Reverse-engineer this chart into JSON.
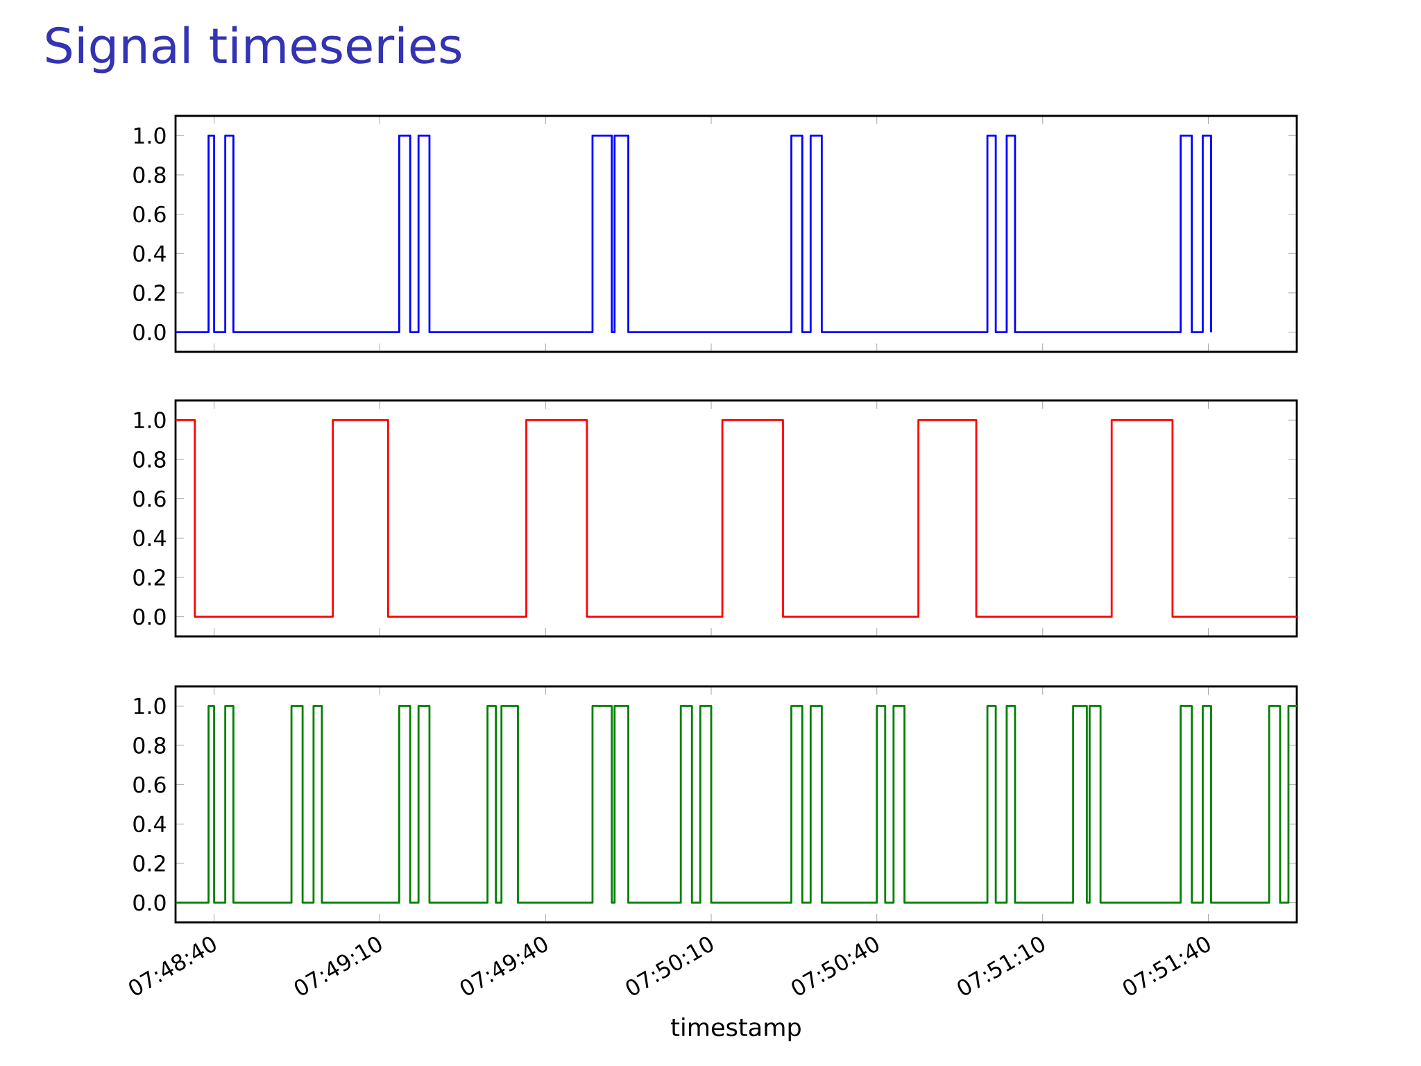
{
  "chart_data": [
    {
      "type": "step",
      "title": "Signal timeseries",
      "color": "#0000ff",
      "tick_labels": "y",
      "x": [
        7.80917,
        7.81083,
        7.81111,
        7.81167,
        7.81208,
        7.82042,
        7.82097,
        7.82139,
        7.82194,
        7.83014,
        7.83111,
        7.83125,
        7.83194,
        7.84014,
        7.84069,
        7.84111,
        7.84167,
        7.85,
        7.85042,
        7.85097,
        7.85139,
        7.85972,
        7.86028,
        7.86083,
        7.86125
      ],
      "values": [
        0,
        1,
        0,
        1,
        0,
        1,
        0,
        1,
        0,
        1,
        0,
        1,
        0,
        1,
        0,
        1,
        0,
        1,
        0,
        1,
        0,
        1,
        0,
        1,
        0
      ],
      "xlim": [
        7.80917,
        7.86556
      ],
      "xticks": [
        {
          "value": 7.81111,
          "label": null
        },
        {
          "value": 7.81944,
          "label": null
        },
        {
          "value": 7.82778,
          "label": null
        },
        {
          "value": 7.83611,
          "label": null
        },
        {
          "value": 7.84444,
          "label": null
        },
        {
          "value": 7.85278,
          "label": null
        },
        {
          "value": 7.86111,
          "label": null
        }
      ],
      "ylim": [
        -0.1,
        1.1
      ],
      "yticks": [
        {
          "value": 0,
          "label": "0.0"
        },
        {
          "value": 0.2,
          "label": "0.2"
        },
        {
          "value": 0.4,
          "label": "0.4"
        },
        {
          "value": 0.6,
          "label": "0.6"
        },
        {
          "value": 0.8,
          "label": "0.8"
        },
        {
          "value": 1,
          "label": "1.0"
        }
      ]
    },
    {
      "type": "step",
      "color": "#ff0000",
      "tick_labels": "y",
      "x": [
        7.80917,
        7.81014,
        7.81708,
        7.81986,
        7.82681,
        7.82986,
        7.83667,
        7.83972,
        7.84653,
        7.84944,
        7.85625,
        7.85931,
        7.86556
      ],
      "values": [
        1,
        0,
        1,
        0,
        1,
        0,
        1,
        0,
        1,
        0,
        1,
        0,
        0
      ],
      "xlim": [
        7.80917,
        7.86556
      ],
      "xticks": [
        {
          "value": 7.81111,
          "label": null
        },
        {
          "value": 7.81944,
          "label": null
        },
        {
          "value": 7.82778,
          "label": null
        },
        {
          "value": 7.83611,
          "label": null
        },
        {
          "value": 7.84444,
          "label": null
        },
        {
          "value": 7.85278,
          "label": null
        },
        {
          "value": 7.86111,
          "label": null
        }
      ],
      "ylim": [
        -0.1,
        1.1
      ],
      "yticks": [
        {
          "value": 0,
          "label": "0.0"
        },
        {
          "value": 0.2,
          "label": "0.2"
        },
        {
          "value": 0.4,
          "label": "0.4"
        },
        {
          "value": 0.6,
          "label": "0.6"
        },
        {
          "value": 0.8,
          "label": "0.8"
        },
        {
          "value": 1,
          "label": "1.0"
        }
      ]
    },
    {
      "type": "step",
      "color": "#008000",
      "xlabel": "timestamp",
      "x": [
        7.80917,
        7.81083,
        7.81111,
        7.81167,
        7.81208,
        7.815,
        7.81556,
        7.81611,
        7.81653,
        7.82042,
        7.82097,
        7.82139,
        7.82194,
        7.82486,
        7.82528,
        7.82556,
        7.82639,
        7.83014,
        7.83111,
        7.83125,
        7.83194,
        7.83458,
        7.83514,
        7.83556,
        7.83611,
        7.84014,
        7.84069,
        7.84111,
        7.84167,
        7.84444,
        7.84486,
        7.84528,
        7.84583,
        7.85,
        7.85042,
        7.85097,
        7.85139,
        7.85431,
        7.855,
        7.85514,
        7.85569,
        7.85972,
        7.86028,
        7.86083,
        7.86125,
        7.86417,
        7.86472,
        7.86514,
        7.86556
      ],
      "values": [
        0,
        1,
        0,
        1,
        0,
        1,
        0,
        1,
        0,
        1,
        0,
        1,
        0,
        1,
        0,
        1,
        0,
        1,
        0,
        1,
        0,
        1,
        0,
        1,
        0,
        1,
        0,
        1,
        0,
        1,
        0,
        1,
        0,
        1,
        0,
        1,
        0,
        1,
        0,
        1,
        0,
        1,
        0,
        1,
        0,
        1,
        0,
        1,
        1
      ],
      "xlim": [
        7.80917,
        7.86556
      ],
      "xticks": [
        {
          "value": 7.81111,
          "label": "07:48:40"
        },
        {
          "value": 7.81944,
          "label": "07:49:10"
        },
        {
          "value": 7.82778,
          "label": "07:49:40"
        },
        {
          "value": 7.83611,
          "label": "07:50:10"
        },
        {
          "value": 7.84444,
          "label": "07:50:40"
        },
        {
          "value": 7.85278,
          "label": "07:51:10"
        },
        {
          "value": 7.86111,
          "label": "07:51:40"
        }
      ],
      "ylim": [
        -0.1,
        1.1
      ],
      "yticks": [
        {
          "value": 0,
          "label": "0.0"
        },
        {
          "value": 0.2,
          "label": "0.2"
        },
        {
          "value": 0.4,
          "label": "0.4"
        },
        {
          "value": 0.6,
          "label": "0.6"
        },
        {
          "value": 0.8,
          "label": "0.8"
        },
        {
          "value": 1,
          "label": "1.0"
        }
      ]
    }
  ]
}
